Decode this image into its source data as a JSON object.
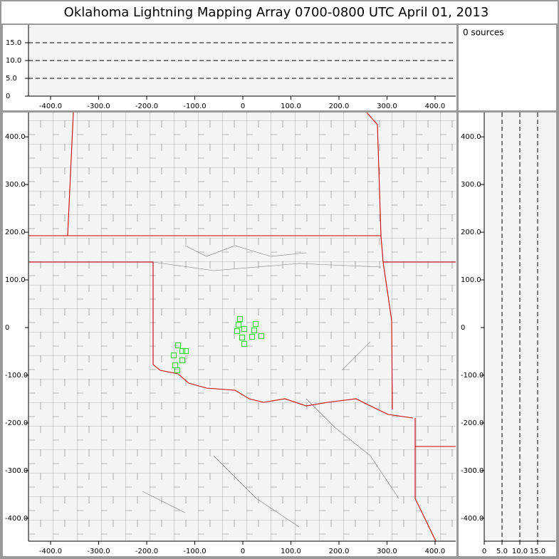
{
  "title": "Oklahoma Lightning Mapping Array   0700-0800 UTC  April 01, 2013",
  "sources_label": "0 sources",
  "chart_data": [
    {
      "type": "scatter",
      "xlim": [
        -446,
        443
      ],
      "ylim": [
        0,
        20
      ],
      "xticks": [
        {
          "value": -400,
          "label": "-400.0"
        },
        {
          "value": -300,
          "label": "-300.0"
        },
        {
          "value": -200,
          "label": "-200.0"
        },
        {
          "value": -100,
          "label": "-100.0"
        },
        0,
        {
          "value": 100,
          "label": "100.0"
        },
        {
          "value": 200,
          "label": "200.0"
        },
        {
          "value": 300,
          "label": "300.0"
        },
        {
          "value": 400,
          "label": "400.0"
        }
      ],
      "yticks": [
        0,
        {
          "value": 5,
          "label": "5.0"
        },
        {
          "value": 10,
          "label": "10.0"
        },
        {
          "value": 15,
          "label": "15.0"
        }
      ],
      "grid": "y"
    },
    {
      "type": "scatter",
      "xlim": [
        -446,
        443
      ],
      "ylim": [
        -448,
        451
      ],
      "xticks": [
        {
          "value": -400,
          "label": "-400.0"
        },
        {
          "value": -300,
          "label": "-300.0"
        },
        {
          "value": -200,
          "label": "-200.0"
        },
        {
          "value": -100,
          "label": "-100.0"
        },
        0,
        {
          "value": 100,
          "label": "100.0"
        },
        {
          "value": 200,
          "label": "200.0"
        },
        {
          "value": 300,
          "label": "300.0"
        },
        {
          "value": 400,
          "label": "400.0"
        }
      ],
      "yticks": [
        {
          "value": -400,
          "label": "-400.0"
        },
        {
          "value": -300,
          "label": "-300.0"
        },
        {
          "value": -200,
          "label": "-200.0"
        },
        {
          "value": -100,
          "label": "-100.0"
        },
        0,
        {
          "value": 100,
          "label": "100.0"
        },
        {
          "value": 200,
          "label": "200.0"
        },
        {
          "value": 300,
          "label": "300.0"
        },
        {
          "value": 400,
          "label": "400.0"
        }
      ],
      "series": [
        {
          "color": "#33dd33",
          "x": [
            -5.9,
            -8.9,
            3.0,
            -11.9,
            26.7,
            23.7,
            -1.5,
            19.3,
            38.5,
            3.0,
            -134.8,
            -125.9,
            -143.7,
            -118.5,
            -125.9,
            -140.7,
            -136.3
          ],
          "values": [
            17.9,
            6.0,
            -3.0,
            -7.5,
            7.5,
            -6.0,
            -20.9,
            -19.4,
            -17.9,
            -34.3,
            -37.3,
            -49.3,
            -58.2,
            -49.3,
            -68.7,
            -79.1,
            -89.6
          ]
        }
      ]
    },
    {
      "type": "scatter",
      "xlim": [
        0,
        20
      ],
      "ylim": [
        -448,
        451
      ],
      "xticks": [
        0,
        {
          "value": 5,
          "label": "5.0"
        },
        {
          "value": 10,
          "label": "10.0"
        },
        {
          "value": 15,
          "label": "15.0"
        }
      ],
      "yticks": [
        {
          "value": -400,
          "label": "-400.0"
        },
        {
          "value": -300,
          "label": "-300.0"
        },
        {
          "value": -200,
          "label": "-200.0"
        },
        {
          "value": -100,
          "label": "-100.0"
        },
        0,
        {
          "value": 100,
          "label": "100.0"
        },
        {
          "value": 200,
          "label": "200.0"
        },
        {
          "value": 300,
          "label": "300.0"
        },
        {
          "value": 400,
          "label": "400.0"
        }
      ],
      "grid": "x"
    }
  ]
}
